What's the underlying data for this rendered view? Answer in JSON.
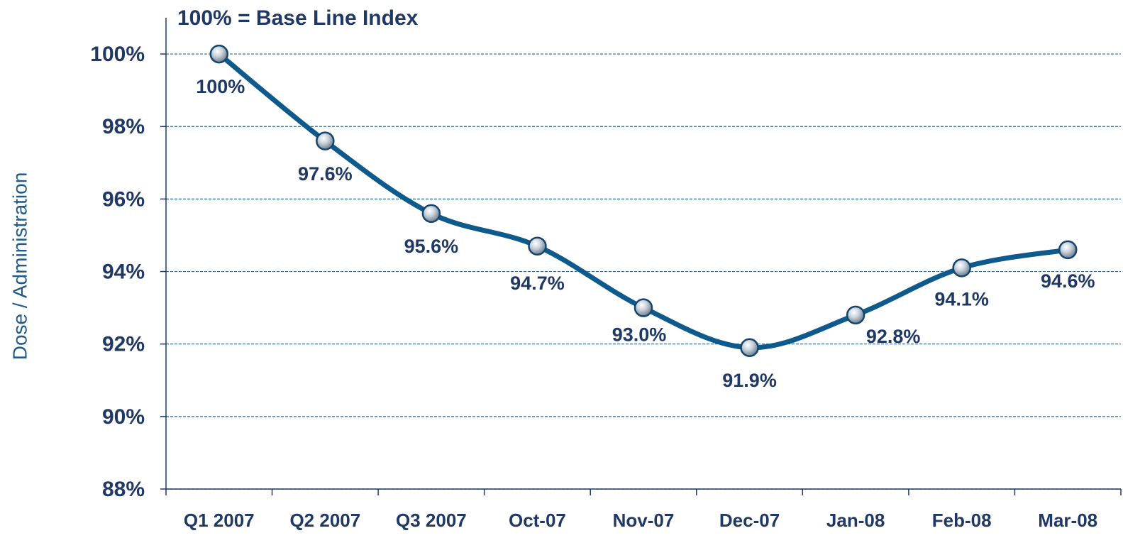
{
  "chart_data": {
    "type": "line",
    "title": "100% = Base Line Index",
    "y_label": "Dose / Administration",
    "categories": [
      "Q1 2007",
      "Q2 2007",
      "Q3 2007",
      "Oct-07",
      "Nov-07",
      "Dec-07",
      "Jan-08",
      "Feb-08",
      "Mar-08"
    ],
    "series": [
      {
        "name": "Dose / Administration",
        "color": "#0f5a8c",
        "values": [
          100,
          97.6,
          95.6,
          94.7,
          93.0,
          91.9,
          92.8,
          94.1,
          94.6
        ],
        "value_labels": [
          "100%",
          "97.6%",
          "95.6%",
          "94.7%",
          "93.0%",
          "91.9%",
          "92.8%",
          "94.1%",
          "94.6%"
        ]
      }
    ],
    "ylim": [
      88,
      101
    ],
    "yticks": [
      {
        "value": 88,
        "label": "88%"
      },
      {
        "value": 90,
        "label": "90%"
      },
      {
        "value": 92,
        "label": "92%"
      },
      {
        "value": 94,
        "label": "94%"
      },
      {
        "value": 96,
        "label": "96%"
      },
      {
        "value": 98,
        "label": "98%"
      },
      {
        "value": 100,
        "label": "100%"
      }
    ],
    "grid": true
  }
}
